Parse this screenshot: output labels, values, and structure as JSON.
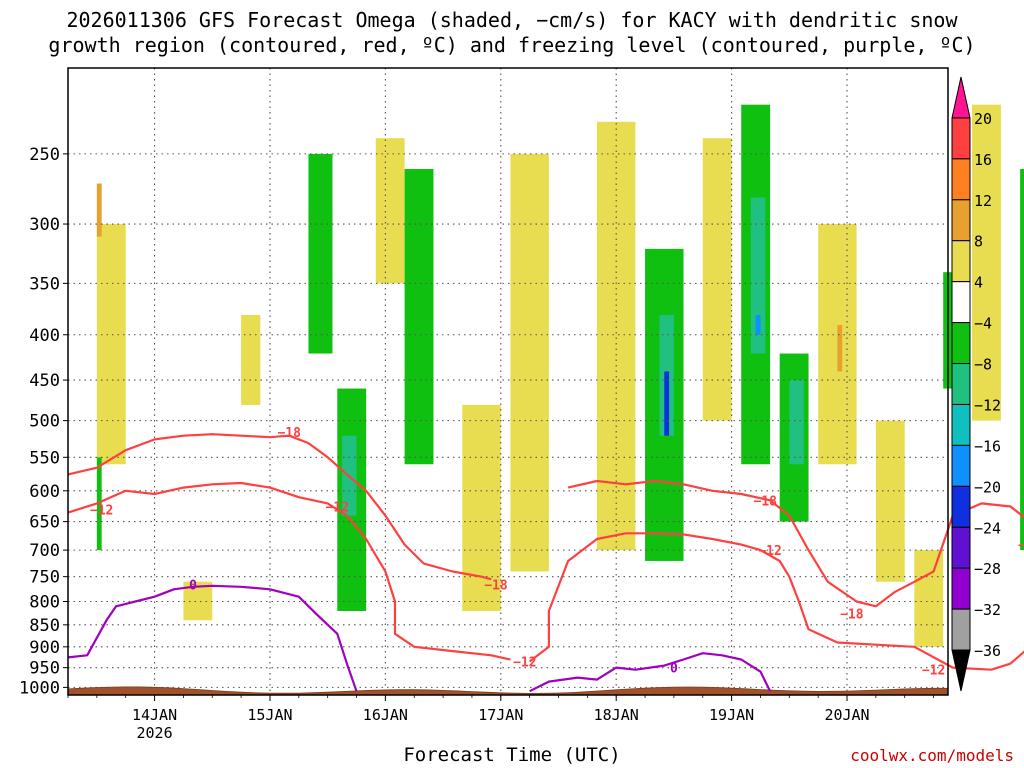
{
  "title_line1": "2026011306 GFS Forecast Omega (shaded, −cm/s) for KACY with dendritic snow",
  "title_line2": "growth region (contoured, red, ºC) and freezing level (contoured, purple, ºC)",
  "credit": "coolwx.com/models",
  "chart_data": {
    "type": "heatmap",
    "xlabel": "Forecast Time (UTC)",
    "ylabel": "",
    "x_start": "2026-01-13 06Z",
    "x_end": "2026-01-20 21Z",
    "x_ticks": [
      {
        "label": "14JAN",
        "sub": "2026",
        "day": 14
      },
      {
        "label": "15JAN",
        "sub": "",
        "day": 15
      },
      {
        "label": "16JAN",
        "sub": "",
        "day": 16
      },
      {
        "label": "17JAN",
        "sub": "",
        "day": 17
      },
      {
        "label": "18JAN",
        "sub": "",
        "day": 18
      },
      {
        "label": "19JAN",
        "sub": "",
        "day": 19
      },
      {
        "label": "20JAN",
        "sub": "",
        "day": 20
      }
    ],
    "y_scale": "log-pressure",
    "y_range_hpa": [
      1020,
      200
    ],
    "y_ticks": [
      "250",
      "300",
      "350",
      "400",
      "450",
      "500",
      "550",
      "600",
      "650",
      "700",
      "750",
      "800",
      "850",
      "900",
      "950",
      "1000"
    ],
    "colorbar": {
      "labels": [
        "20",
        "16",
        "12",
        "8",
        "4",
        "−4",
        "−8",
        "−12",
        "−16",
        "−20",
        "−24",
        "−28",
        "−32",
        "−36"
      ],
      "colors": [
        "#ff1493",
        "#ff4040",
        "#ff8020",
        "#e8a030",
        "#e8dd50",
        "#ffffff",
        "#10c010",
        "#20c080",
        "#10c0c0",
        "#1090ff",
        "#1030e0",
        "#6010d0",
        "#9000d0",
        "#a0a0a0",
        "#000000"
      ]
    },
    "shading_colors": {
      "yellow": "#e8dd50",
      "orange": "#e8a030",
      "green": "#10c010",
      "teal": "#20c080",
      "cyan": "#10c0c0",
      "blue": "#1090ff",
      "navy": "#1030e0"
    },
    "shading_regions": [
      {
        "color": "yellow",
        "t": [
          6,
          12
        ],
        "p": [
          300,
          560
        ]
      },
      {
        "color": "orange",
        "t": [
          6,
          7
        ],
        "p": [
          270,
          310
        ]
      },
      {
        "color": "green",
        "t": [
          6,
          7
        ],
        "p": [
          550,
          700
        ]
      },
      {
        "color": "yellow",
        "t": [
          24,
          30
        ],
        "p": [
          760,
          840
        ]
      },
      {
        "color": "yellow",
        "t": [
          36,
          40
        ],
        "p": [
          380,
          480
        ]
      },
      {
        "color": "green",
        "t": [
          50,
          55
        ],
        "p": [
          250,
          420
        ]
      },
      {
        "color": "green",
        "t": [
          56,
          62
        ],
        "p": [
          460,
          820
        ]
      },
      {
        "color": "teal",
        "t": [
          57,
          60
        ],
        "p": [
          520,
          640
        ]
      },
      {
        "color": "yellow",
        "t": [
          64,
          70
        ],
        "p": [
          240,
          350
        ]
      },
      {
        "color": "green",
        "t": [
          70,
          76
        ],
        "p": [
          260,
          560
        ]
      },
      {
        "color": "yellow",
        "t": [
          82,
          90
        ],
        "p": [
          480,
          820
        ]
      },
      {
        "color": "yellow",
        "t": [
          92,
          100
        ],
        "p": [
          250,
          740
        ]
      },
      {
        "color": "yellow",
        "t": [
          110,
          118
        ],
        "p": [
          230,
          700
        ]
      },
      {
        "color": "green",
        "t": [
          120,
          128
        ],
        "p": [
          320,
          720
        ]
      },
      {
        "color": "teal",
        "t": [
          123,
          126
        ],
        "p": [
          380,
          520
        ]
      },
      {
        "color": "navy",
        "t": [
          124,
          125
        ],
        "p": [
          440,
          520
        ]
      },
      {
        "color": "yellow",
        "t": [
          132,
          138
        ],
        "p": [
          240,
          500
        ]
      },
      {
        "color": "green",
        "t": [
          140,
          146
        ],
        "p": [
          220,
          560
        ]
      },
      {
        "color": "teal",
        "t": [
          142,
          145
        ],
        "p": [
          280,
          420
        ]
      },
      {
        "color": "blue",
        "t": [
          143,
          144
        ],
        "p": [
          380,
          400
        ]
      },
      {
        "color": "green",
        "t": [
          148,
          154
        ],
        "p": [
          420,
          650
        ]
      },
      {
        "color": "teal",
        "t": [
          150,
          153
        ],
        "p": [
          450,
          560
        ]
      },
      {
        "color": "yellow",
        "t": [
          156,
          164
        ],
        "p": [
          300,
          560
        ]
      },
      {
        "color": "orange",
        "t": [
          160,
          161
        ],
        "p": [
          390,
          440
        ]
      },
      {
        "color": "yellow",
        "t": [
          168,
          174
        ],
        "p": [
          500,
          760
        ]
      },
      {
        "color": "yellow",
        "t": [
          176,
          182
        ],
        "p": [
          700,
          900
        ]
      },
      {
        "color": "green",
        "t": [
          182,
          186
        ],
        "p": [
          340,
          460
        ]
      },
      {
        "color": "yellow",
        "t": [
          188,
          194
        ],
        "p": [
          220,
          500
        ]
      },
      {
        "color": "green",
        "t": [
          198,
          208
        ],
        "p": [
          260,
          700
        ]
      },
      {
        "color": "teal",
        "t": [
          202,
          206
        ],
        "p": [
          300,
          500
        ]
      },
      {
        "color": "yellow",
        "t": [
          208,
          211
        ],
        "p": [
          200,
          300
        ]
      },
      {
        "color": "orange",
        "t": [
          210,
          211
        ],
        "p": [
          200,
          230
        ]
      }
    ],
    "contours": [
      {
        "name": "",
        "color": "#ff4040",
        "label": "−18",
        "label_points": [
          {
            "t": 46,
            "p": 515
          },
          {
            "t": 89,
            "p": 765
          },
          {
            "t": 145,
            "p": 615
          },
          {
            "t": 163,
            "p": 825
          },
          {
            "t": 200,
            "p": 690
          }
        ],
        "points": [
          [
            0,
            575
          ],
          [
            6,
            565
          ],
          [
            12,
            540
          ],
          [
            18,
            525
          ],
          [
            24,
            520
          ],
          [
            30,
            518
          ],
          [
            36,
            520
          ],
          [
            42,
            522
          ],
          [
            46,
            520
          ],
          [
            50,
            530
          ],
          [
            54,
            550
          ],
          [
            58,
            575
          ],
          [
            62,
            600
          ],
          [
            66,
            640
          ],
          [
            70,
            690
          ],
          [
            74,
            725
          ],
          [
            80,
            740
          ],
          [
            86,
            750
          ],
          [
            88,
            755
          ]
        ]
      },
      {
        "name": "",
        "color": "#ff4040",
        "label": "−12",
        "label_points": [
          {
            "t": 7,
            "p": 630
          },
          {
            "t": 56,
            "p": 625
          }
        ],
        "points": [
          [
            0,
            635
          ],
          [
            6,
            620
          ],
          [
            12,
            600
          ],
          [
            18,
            605
          ],
          [
            24,
            595
          ],
          [
            30,
            590
          ],
          [
            36,
            588
          ],
          [
            42,
            595
          ],
          [
            48,
            610
          ],
          [
            54,
            620
          ],
          [
            58,
            640
          ],
          [
            62,
            680
          ],
          [
            66,
            740
          ],
          [
            68,
            800
          ],
          [
            68,
            870
          ],
          [
            72,
            900
          ],
          [
            80,
            910
          ],
          [
            88,
            920
          ],
          [
            92,
            930
          ]
        ]
      },
      {
        "name": "",
        "color": "#ff4040",
        "label": "−12",
        "label_points": [
          {
            "t": 95,
            "p": 935
          },
          {
            "t": 146,
            "p": 700
          },
          {
            "t": 180,
            "p": 955
          },
          {
            "t": 203,
            "p": 845
          }
        ],
        "points": [
          [
            96,
            935
          ],
          [
            100,
            900
          ],
          [
            100,
            820
          ],
          [
            104,
            720
          ],
          [
            110,
            680
          ],
          [
            116,
            670
          ],
          [
            122,
            670
          ],
          [
            128,
            672
          ],
          [
            134,
            680
          ],
          [
            140,
            690
          ],
          [
            144,
            700
          ],
          [
            148,
            720
          ],
          [
            150,
            750
          ],
          [
            152,
            800
          ],
          [
            154,
            860
          ],
          [
            160,
            890
          ],
          [
            168,
            895
          ],
          [
            176,
            900
          ],
          [
            184,
            950
          ],
          [
            192,
            955
          ],
          [
            196,
            940
          ],
          [
            200,
            900
          ],
          [
            202,
            850
          ],
          [
            206,
            830
          ]
        ]
      },
      {
        "name": "",
        "color": "#ff4040",
        "label": "",
        "label_points": [],
        "points": [
          [
            104,
            595
          ],
          [
            110,
            585
          ],
          [
            116,
            590
          ],
          [
            122,
            585
          ],
          [
            128,
            590
          ],
          [
            134,
            600
          ],
          [
            140,
            605
          ],
          [
            146,
            615
          ],
          [
            150,
            640
          ],
          [
            154,
            700
          ],
          [
            158,
            760
          ],
          [
            164,
            800
          ],
          [
            168,
            810
          ],
          [
            172,
            780
          ],
          [
            176,
            760
          ],
          [
            180,
            740
          ],
          [
            184,
            640
          ],
          [
            190,
            620
          ],
          [
            196,
            625
          ],
          [
            200,
            650
          ],
          [
            204,
            700
          ],
          [
            206,
            760
          ],
          [
            208,
            840
          ],
          [
            210,
            900
          ],
          [
            212,
            940
          ]
        ]
      },
      {
        "name": "",
        "color": "#a000c0",
        "label": "0",
        "label_points": [
          {
            "t": 26,
            "p": 765
          },
          {
            "t": 126,
            "p": 950
          }
        ],
        "points": [
          [
            0,
            925
          ],
          [
            4,
            920
          ],
          [
            8,
            840
          ],
          [
            10,
            810
          ],
          [
            14,
            800
          ],
          [
            18,
            790
          ],
          [
            22,
            775
          ],
          [
            26,
            770
          ],
          [
            30,
            768
          ],
          [
            36,
            770
          ],
          [
            42,
            775
          ],
          [
            48,
            790
          ],
          [
            52,
            830
          ],
          [
            56,
            870
          ],
          [
            58,
            940
          ],
          [
            60,
            1010
          ]
        ]
      },
      {
        "name": "",
        "color": "#a000c0",
        "label": "",
        "label_points": [],
        "points": [
          [
            96,
            1010
          ],
          [
            100,
            985
          ],
          [
            106,
            975
          ],
          [
            110,
            980
          ],
          [
            114,
            950
          ],
          [
            118,
            955
          ],
          [
            124,
            945
          ],
          [
            128,
            930
          ],
          [
            132,
            915
          ],
          [
            136,
            920
          ],
          [
            140,
            930
          ],
          [
            144,
            960
          ],
          [
            146,
            1010
          ]
        ]
      }
    ]
  }
}
